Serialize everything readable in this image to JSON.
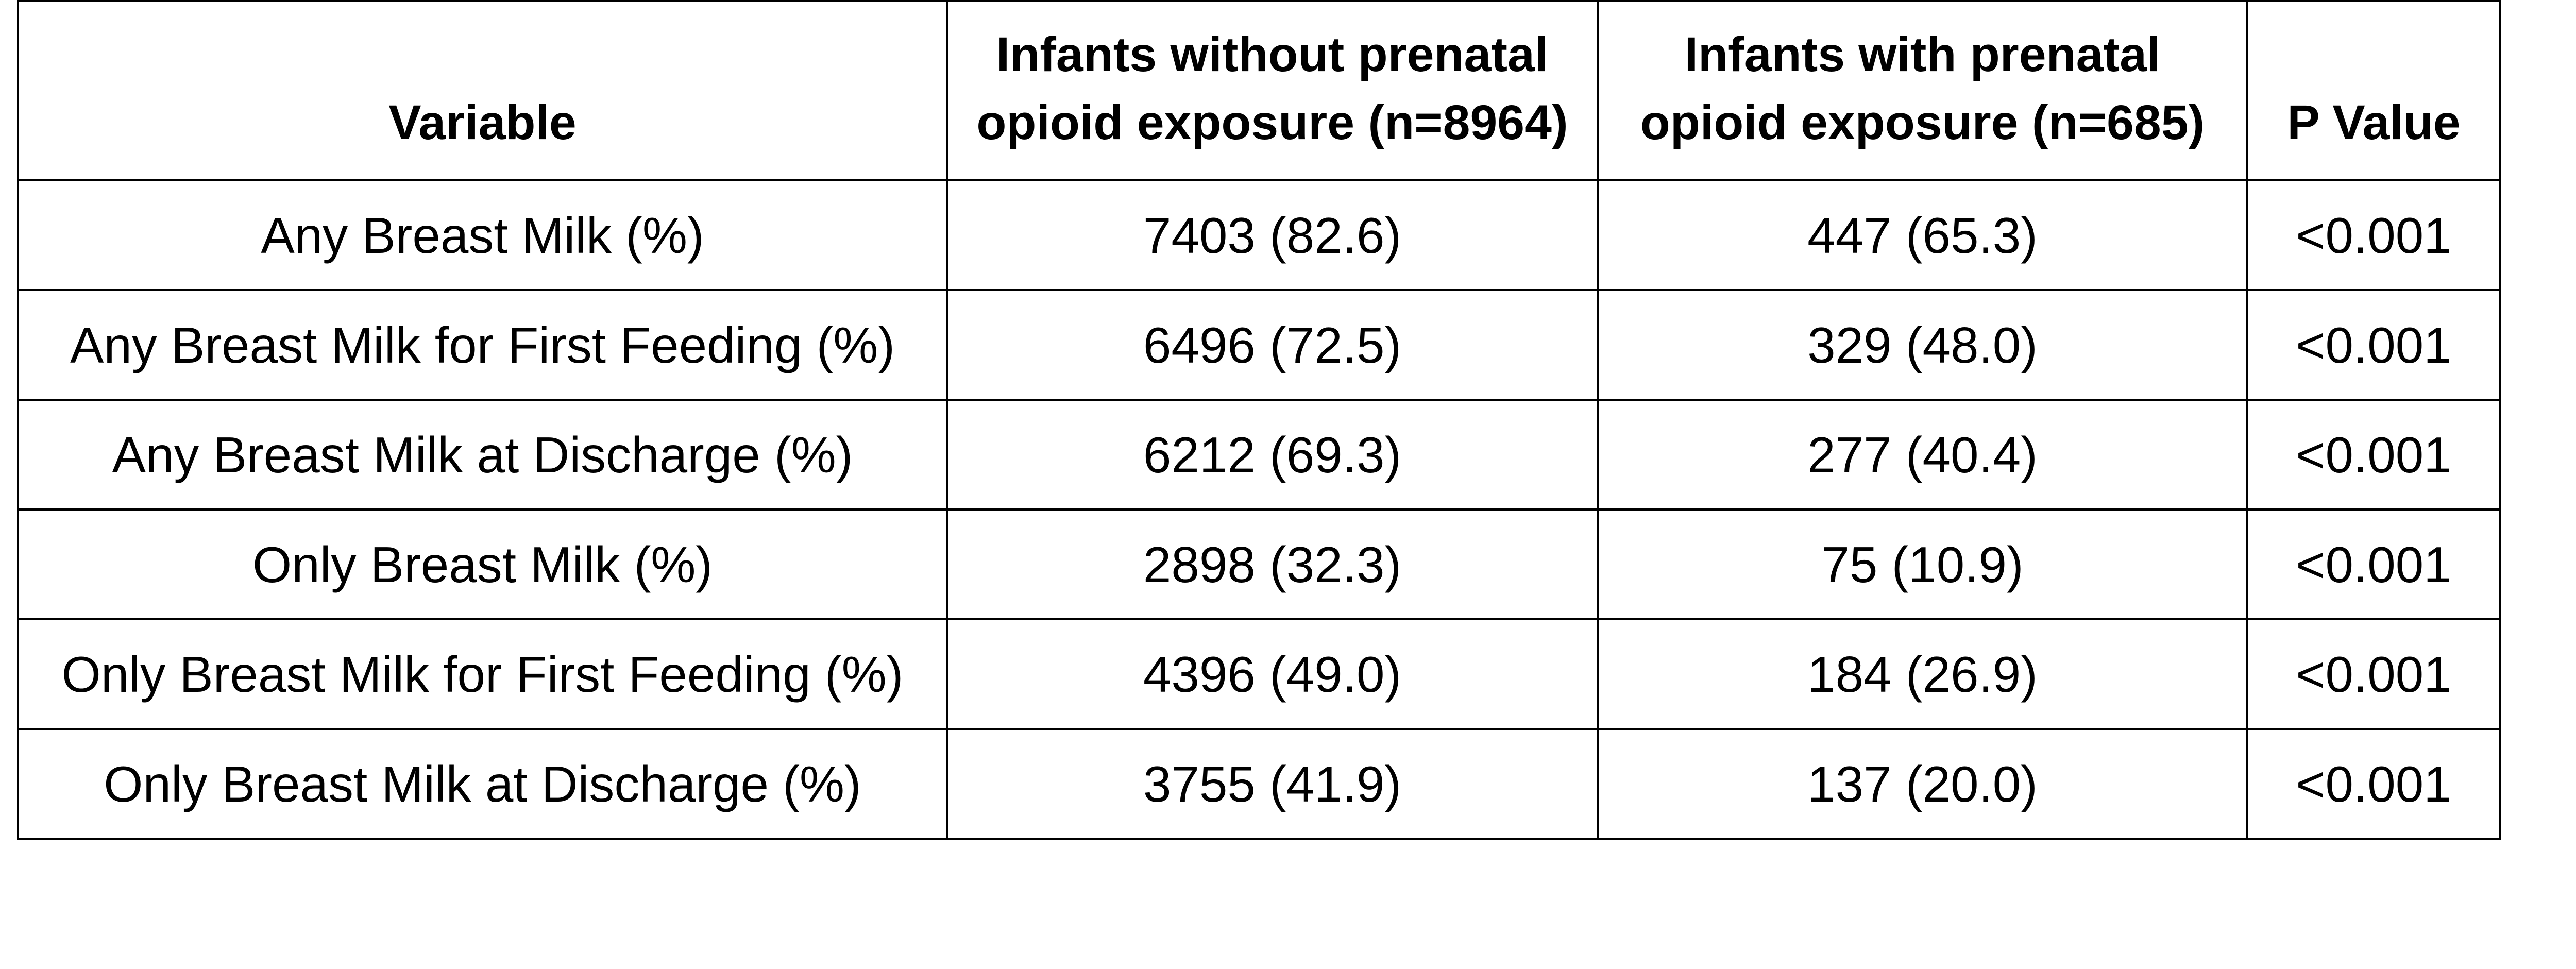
{
  "chart_data": {
    "type": "table",
    "columns": [
      "Variable",
      "Infants without prenatal opioid exposure (n=8964)",
      "Infants with prenatal opioid exposure (n=685)",
      "P Value"
    ],
    "header": {
      "variable": "Variable",
      "without_line1": "Infants without prenatal",
      "without_line2": "opioid exposure (n=8964)",
      "with_line1": "Infants with prenatal",
      "with_line2": "opioid exposure (n=685)",
      "p_value": "P Value"
    },
    "rows": [
      {
        "variable": "Any Breast Milk (%)",
        "without": "7403 (82.6)",
        "with": "447 (65.3)",
        "p": "<0.001"
      },
      {
        "variable": "Any Breast Milk for First Feeding (%)",
        "without": "6496 (72.5)",
        "with": "329 (48.0)",
        "p": "<0.001"
      },
      {
        "variable": "Any Breast Milk at Discharge (%)",
        "without": "6212 (69.3)",
        "with": "277 (40.4)",
        "p": "<0.001"
      },
      {
        "variable": "Only Breast Milk (%)",
        "without": "2898 (32.3)",
        "with": "75 (10.9)",
        "p": "<0.001"
      },
      {
        "variable": "Only Breast Milk for First Feeding (%)",
        "without": "4396 (49.0)",
        "with": "184 (26.9)",
        "p": "<0.001"
      },
      {
        "variable": "Only Breast Milk at Discharge (%)",
        "without": "3755 (41.9)",
        "with": "137 (20.0)",
        "p": "<0.001"
      }
    ]
  }
}
